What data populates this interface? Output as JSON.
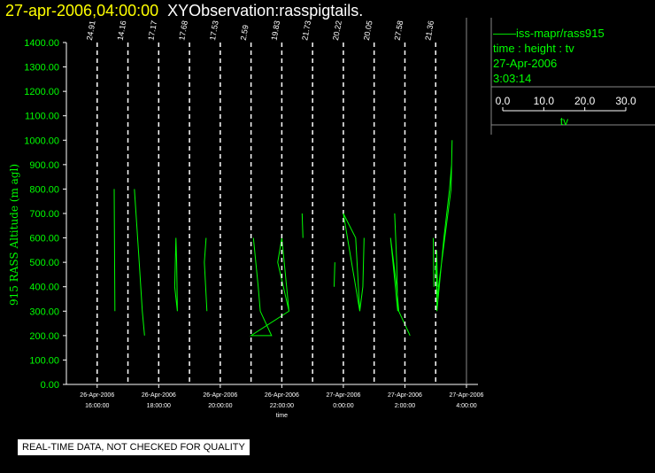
{
  "header": {
    "date_label": "27-apr-2006,04:00:00",
    "observation_label": "XYObservation:rasspigtails."
  },
  "legend": {
    "series_label": "iss-mapr/rass915",
    "line2": "time : height : tv",
    "line3": "27-Apr-2006",
    "line4": "3:03:14",
    "scale_ticks": [
      "0.0",
      "10.0",
      "20.0",
      "30.0"
    ],
    "scale_label": "tv"
  },
  "footer": {
    "disclaimer": "REAL-TIME DATA, NOT CHECKED FOR QUALITY"
  },
  "colors": {
    "trace": "#00ff00",
    "date": "#ffff00",
    "axes": "#ffffff",
    "background": "#000000"
  },
  "chart_data": {
    "type": "line",
    "ylabel": "915 RASS Altitude (m agl)",
    "xlabel": "time",
    "ylim": [
      0,
      1400
    ],
    "yticks": [
      "0.00",
      "100.00",
      "200.00",
      "300.00",
      "400.00",
      "500.00",
      "600.00",
      "700.00",
      "800.00",
      "900.00",
      "1000.00",
      "1100.00",
      "1200.00",
      "1300.00",
      "1400.00"
    ],
    "xlim": [
      "2006-04-26T15:00",
      "2006-04-27T04:00"
    ],
    "xticks": [
      {
        "date": "26-Apr-2006",
        "time": "16:00:00"
      },
      {
        "date": "26-Apr-2006",
        "time": "18:00:00"
      },
      {
        "date": "26-Apr-2006",
        "time": "20:00:00"
      },
      {
        "date": "26-Apr-2006",
        "time": "22:00:00"
      },
      {
        "date": "27-Apr-2006",
        "time": "0:00:00"
      },
      {
        "date": "27-Apr-2006",
        "time": "2:00:00"
      },
      {
        "date": "27-Apr-2006",
        "time": "4:00:00"
      }
    ],
    "tv_scale": [
      0,
      30
    ],
    "profiles": [
      {
        "time": "2006-04-26T16:00",
        "label": "24.91",
        "points": [
          [
            16.6,
            800
          ],
          [
            17.0,
            500
          ],
          [
            17.3,
            300
          ]
        ]
      },
      {
        "time": "2006-04-26T17:00",
        "label": "14.16",
        "points": [
          [
            6.3,
            800
          ],
          [
            11.0,
            500
          ],
          [
            14.0,
            300
          ],
          [
            16.2,
            200
          ]
        ]
      },
      {
        "time": "2006-04-26T18:00",
        "label": "17.17",
        "points": [
          [
            16.8,
            600
          ],
          [
            15.6,
            400
          ],
          [
            18.2,
            300
          ],
          [
            17.5,
            500
          ],
          [
            16.8,
            600
          ]
        ]
      },
      {
        "time": "2006-04-26T19:00",
        "label": "17.68",
        "points": [
          [
            16.2,
            600
          ],
          [
            14.5,
            500
          ],
          [
            17.0,
            300
          ]
        ]
      },
      {
        "time": "2006-04-26T20:00",
        "label": "17.53",
        "points": [
          [
            18.0,
            600
          ]
        ]
      },
      {
        "time": "2006-04-26T21:00",
        "label": "2.59",
        "points": [
          [
            2.3,
            600
          ],
          [
            7.0,
            400
          ],
          [
            9.0,
            300
          ],
          [
            20.0,
            200
          ],
          [
            0.0,
            200
          ],
          [
            37.0,
            300
          ],
          [
            30.0,
            600
          ],
          [
            26.0,
            500
          ],
          [
            37.0,
            300
          ]
        ]
      },
      {
        "time": "2006-04-26T22:00",
        "label": "19.83",
        "points": [
          [
            19.8,
            700
          ],
          [
            20.6,
            600
          ]
        ]
      },
      {
        "time": "2006-04-26T23:00",
        "label": "21.73",
        "points": [
          [
            21.7,
            500
          ],
          [
            21.0,
            400
          ]
        ]
      },
      {
        "time": "2006-04-27T00:00",
        "label": "20.22",
        "points": [
          [
            20.2,
            600
          ],
          [
            19.0,
            400
          ],
          [
            16.0,
            300
          ],
          [
            0.0,
            700
          ],
          [
            12.0,
            600
          ],
          [
            16.0,
            300
          ]
        ]
      },
      {
        "time": "2006-04-27T01:00",
        "label": "20.05",
        "points": [
          [
            20.0,
            700
          ],
          [
            22.0,
            500
          ],
          [
            23.0,
            300
          ],
          [
            16.0,
            600
          ],
          [
            22.0,
            400
          ],
          [
            24.0,
            300
          ],
          [
            35.0,
            200
          ]
        ]
      },
      {
        "time": "2006-04-27T02:00",
        "label": "27.58",
        "points": [
          [
            27.6,
            600
          ],
          [
            28.2,
            400
          ]
        ]
      },
      {
        "time": "2006-04-27T03:00",
        "label": "21.36",
        "points": [
          [
            0.0,
            450
          ],
          [
            0.6,
            500
          ],
          [
            1.2,
            300
          ],
          [
            8.0,
            600
          ],
          [
            13.5,
            800
          ],
          [
            15.5,
            900
          ],
          [
            16.0,
            1000
          ],
          [
            15.0,
            800
          ],
          [
            1.2,
            350
          ],
          [
            1.0,
            550
          ],
          [
            1.7,
            400
          ]
        ]
      }
    ]
  }
}
